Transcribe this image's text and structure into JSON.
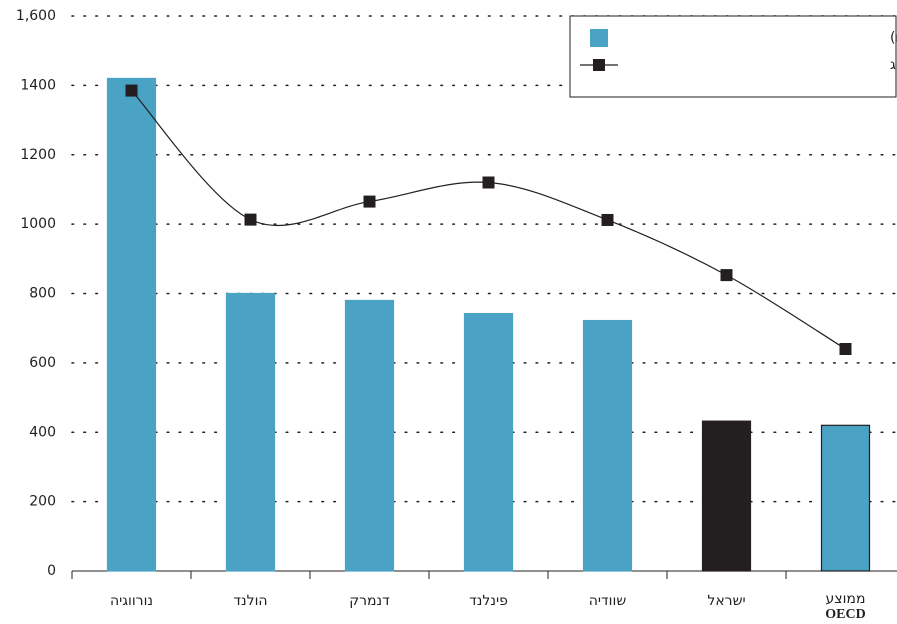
{
  "chart_data": {
    "type": "bar",
    "categories": [
      "נורווגיה",
      "הולנד",
      "דנמרק",
      "פינלנד",
      "שוודיה",
      "ישראל",
      [
        "ממוצע",
        "OECD"
      ]
    ],
    "series": [
      {
        "name": "הוצאה ציבורית לנפש (בדולרים)",
        "type": "bar",
        "color": "#4aa3c4",
        "colors": [
          "#4aa3c4",
          "#4aa3c4",
          "#4aa3c4",
          "#4aa3c4",
          "#4aa3c4",
          "#231f20",
          "#4aa3c4"
        ],
        "edgecolors": [
          "#4aa3c4",
          "#4aa3c4",
          "#4aa3c4",
          "#4aa3c4",
          "#4aa3c4",
          "#231f20",
          "#231f20"
        ],
        "values": [
          1420,
          800,
          780,
          742,
          722,
          432,
          420
        ]
      },
      {
        "name": "שיעור ההוצאה כאחוז מהתמ\"ג",
        "type": "line",
        "color": "#231f20",
        "values": [
          1385,
          1013,
          1065,
          1120,
          1012,
          853,
          640
        ]
      }
    ],
    "ylim": [
      0,
      1600
    ],
    "yticks": [
      0,
      200,
      400,
      600,
      800,
      1000,
      1200,
      1400,
      {
        "value": 1600,
        "label": "1,600"
      }
    ],
    "grid": true,
    "legend": "upper right"
  }
}
